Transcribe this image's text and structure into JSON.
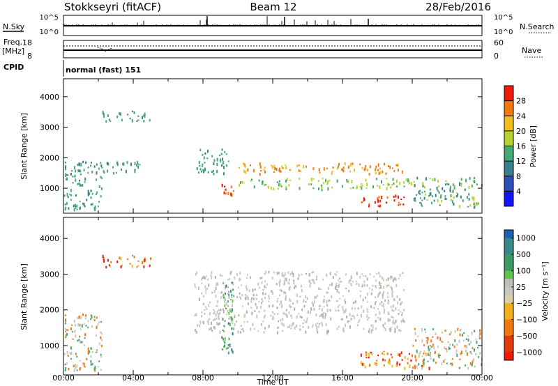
{
  "header": {
    "station": "Stokkseyri (fitACF)",
    "beam": "Beam 12",
    "date": "28/Feb/2016"
  },
  "colors": {
    "power_scale": [
      "#1414ff",
      "#2a4fb6",
      "#3a7f8c",
      "#46a878",
      "#b8d430",
      "#f0c020",
      "#f07a10",
      "#ee1a08"
    ],
    "velocity_scale": [
      "#2a4fb6",
      "#3a7f8c",
      "#46a878",
      "#7ac84a",
      "#c8c8c0",
      "#f0c020",
      "#f07a10",
      "#ee1a08"
    ],
    "velocity_scale_cells": [
      [
        "#2060b0",
        "#34888c"
      ],
      [
        "#34888c",
        "#3b9a62"
      ],
      [
        "#3b9a62",
        "#60c050"
      ],
      [
        "#c0c0b8",
        "#c8c8c0"
      ],
      [
        "#d8d0a8",
        "#f0b020"
      ],
      [
        "#f0b020",
        "#f07a10"
      ],
      [
        "#f07a10",
        "#e03a08"
      ],
      [
        "#e03a08",
        "#ee1a08"
      ]
    ]
  },
  "nsky": {
    "label": "N.Sky",
    "left_ticks": [
      "10^5",
      "10^0"
    ],
    "right_ticks": [
      "10^5",
      "10^0"
    ],
    "right_label": "N.Search"
  },
  "freq": {
    "label_line1": "Freq.",
    "label_line2": "[MHz]",
    "left_ticks": [
      "18",
      "8"
    ],
    "right_ticks": [
      "60",
      "0"
    ],
    "right_label": "Nave"
  },
  "cpid": {
    "label": "CPID",
    "value": "normal (fast) 151"
  },
  "chart_data": [
    {
      "type": "heatmap",
      "quantity": "Power",
      "ylabel": "Slant Range [km]",
      "ylim": [
        180,
        4590
      ],
      "yticks": [
        1000,
        2000,
        3000,
        4000
      ],
      "xlim": [
        0,
        24
      ],
      "colorbar": {
        "label": "Power [dB]",
        "range": [
          0,
          32
        ],
        "ticks": [
          "4",
          "8",
          "12",
          "16",
          "20",
          "24",
          "28"
        ]
      },
      "echo_regions": [
        {
          "t0": 0.0,
          "t1": 2.2,
          "r0": 300,
          "r1": 1900,
          "value": "8-16 dB"
        },
        {
          "t0": 2.2,
          "t1": 5.0,
          "r0": 3200,
          "r1": 3550,
          "value": "8-16 dB"
        },
        {
          "t0": 2.0,
          "t1": 4.5,
          "r0": 1500,
          "r1": 1900,
          "value": "8-16 dB"
        },
        {
          "t0": 7.5,
          "t1": 9.5,
          "r0": 1500,
          "r1": 2300,
          "value": "8-16 dB"
        },
        {
          "t0": 9.0,
          "t1": 9.8,
          "r0": 800,
          "r1": 1200,
          "value": "24-32 dB"
        },
        {
          "t0": 10.0,
          "t1": 19.5,
          "r0": 1500,
          "r1": 1850,
          "value": "20-28 dB"
        },
        {
          "t0": 10.0,
          "t1": 20.0,
          "r0": 1000,
          "r1": 1350,
          "value": "12-20 dB"
        },
        {
          "t0": 17.0,
          "t1": 19.5,
          "r0": 400,
          "r1": 800,
          "value": "24-32 dB"
        },
        {
          "t0": 20.0,
          "t1": 24.0,
          "r0": 400,
          "r1": 1400,
          "value": "8-20 dB"
        }
      ]
    },
    {
      "type": "heatmap",
      "quantity": "Velocity",
      "ylabel": "Slant Range [km]",
      "ylim": [
        180,
        4590
      ],
      "yticks": [
        1000,
        2000,
        3000,
        4000
      ],
      "xlim": [
        0,
        24
      ],
      "xlabel": "Time UT",
      "xticks": [
        "00:00",
        "04:00",
        "08:00",
        "12:00",
        "16:00",
        "20:00",
        "00:00"
      ],
      "colorbar": {
        "label": "Velocity [m s⁻¹]",
        "ticks": [
          "1000",
          "500",
          "100",
          "25",
          "−25",
          "−100",
          "−500",
          "−1000"
        ]
      },
      "echo_regions": [
        {
          "t0": 0.0,
          "t1": 2.2,
          "r0": 300,
          "r1": 1900,
          "value": "−500 to 500 m/s"
        },
        {
          "t0": 2.2,
          "t1": 5.0,
          "r0": 3200,
          "r1": 3550,
          "value": "−500 to −100 m/s"
        },
        {
          "t0": 7.5,
          "t1": 19.5,
          "r0": 1400,
          "r1": 3100,
          "value": "−25 to 25 m/s"
        },
        {
          "t0": 9.0,
          "t1": 9.8,
          "r0": 800,
          "r1": 2800,
          "value": "100 to 500 m/s"
        },
        {
          "t0": 17.0,
          "t1": 21.0,
          "r0": 400,
          "r1": 900,
          "value": "−500 to −100 m/s"
        },
        {
          "t0": 20.0,
          "t1": 24.0,
          "r0": 400,
          "r1": 1500,
          "value": "−500 to 100 m/s"
        }
      ]
    }
  ]
}
